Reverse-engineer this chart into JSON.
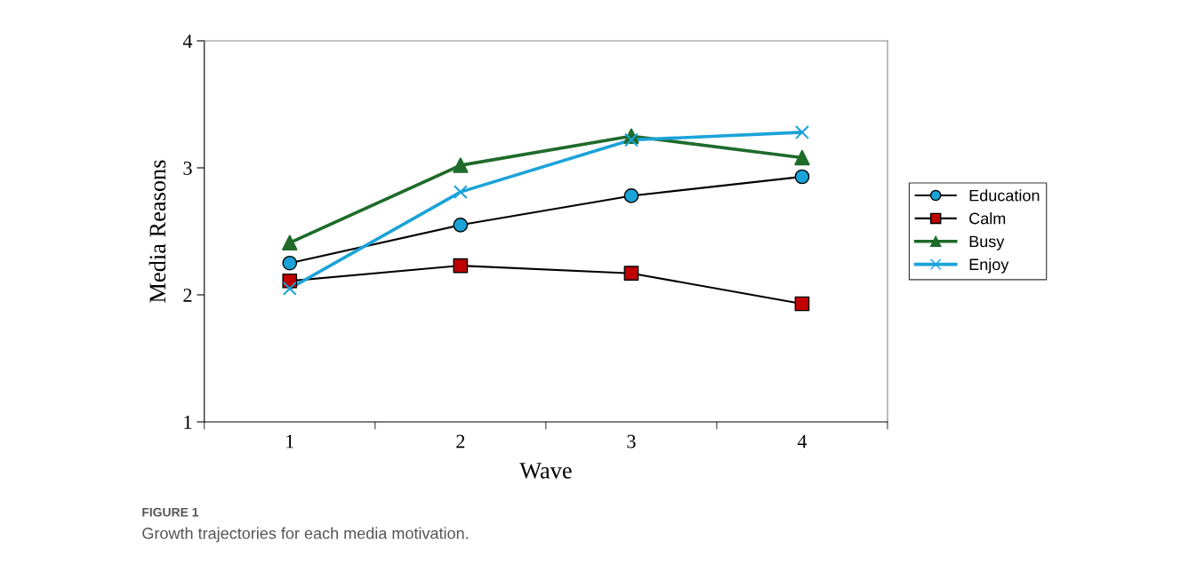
{
  "chart_data": {
    "type": "line",
    "xlabel": "Wave",
    "ylabel": "Media Reasons",
    "categories": [
      "1",
      "2",
      "3",
      "4"
    ],
    "ylim": [
      1,
      4
    ],
    "yticks": [
      1,
      2,
      3,
      4
    ],
    "grid": false,
    "legend": "right",
    "series": [
      {
        "name": "Education",
        "color": "#000000",
        "colors": [
          "#1aa3d8",
          "#1aa3d8",
          "#1aa3d8",
          "#1aa3d8"
        ],
        "marker": "circle",
        "values": [
          2.25,
          2.55,
          2.78,
          2.93
        ]
      },
      {
        "name": "Calm",
        "color": "#000000",
        "colors": [
          "#c00000",
          "#c00000",
          "#c00000",
          "#c00000"
        ],
        "marker": "square",
        "values": [
          2.11,
          2.23,
          2.17,
          1.93
        ]
      },
      {
        "name": "Busy",
        "color": "#1e6b2a",
        "marker": "triangle",
        "values": [
          2.41,
          3.02,
          3.25,
          3.08
        ]
      },
      {
        "name": "Enjoy",
        "color": "#1aa3d8",
        "marker": "cross",
        "values": [
          2.05,
          2.81,
          3.22,
          3.28
        ]
      }
    ],
    "annotations": [
      "FIGURE 1",
      "Growth trajectories for each media motivation."
    ]
  }
}
